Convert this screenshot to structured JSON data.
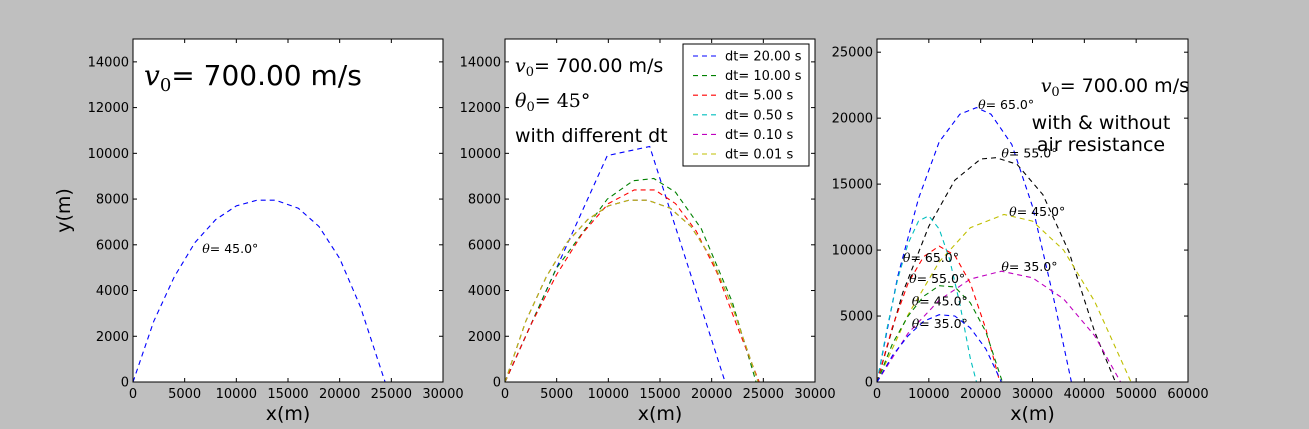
{
  "chart_data": [
    {
      "type": "line",
      "xlabel": "x(m)",
      "ylabel": "y(m)",
      "xlim": [
        0,
        30000
      ],
      "ylim": [
        0,
        15000
      ],
      "xticks": [
        "0",
        "5000",
        "10000",
        "15000",
        "20000",
        "25000",
        "30000"
      ],
      "yticks": [
        "0",
        "2000",
        "4000",
        "6000",
        "8000",
        "10000",
        "12000",
        "14000"
      ],
      "title_main": "v",
      "title_sub": "0",
      "title_rest": "= 700.00 m/s",
      "annotations": [
        {
          "text": "θ= 45.0°",
          "x": 6700,
          "y": 5650
        }
      ],
      "series": [
        {
          "name": "θ= 45.0°",
          "color": "#0000ff",
          "x": [
            0,
            2000,
            4000,
            6000,
            8000,
            10000,
            12000,
            13800,
            16000,
            18000,
            20000,
            22000,
            24400
          ],
          "y": [
            0,
            2650,
            4600,
            6100,
            7100,
            7700,
            7950,
            7950,
            7600,
            6800,
            5400,
            3300,
            0
          ]
        }
      ]
    },
    {
      "type": "line",
      "xlabel": "x(m)",
      "xlim": [
        0,
        30000
      ],
      "ylim": [
        0,
        15000
      ],
      "xticks": [
        "0",
        "5000",
        "10000",
        "15000",
        "20000",
        "25000",
        "30000"
      ],
      "yticks": [
        "0",
        "2000",
        "4000",
        "6000",
        "8000",
        "10000",
        "12000",
        "14000"
      ],
      "title_main": "v",
      "title_sub": "0",
      "title_rest": "= 700.00 m/s",
      "theta_line": "θ",
      "theta_sub": "0",
      "theta_rest": "= 45°",
      "subtitle": "with different dt",
      "legend_position": "upper-right",
      "series": [
        {
          "name": "dt= 20.00 s",
          "color": "#0000ff",
          "x": [
            0,
            9900,
            14000,
            21300
          ],
          "y": [
            0,
            9900,
            10300,
            0
          ]
        },
        {
          "name": "dt= 10.00 s",
          "color": "#008000",
          "x": [
            0,
            4950,
            9900,
            12400,
            14400,
            16500,
            19000,
            22000,
            24300
          ],
          "y": [
            0,
            4950,
            8000,
            8800,
            8900,
            8300,
            6700,
            3500,
            0
          ]
        },
        {
          "name": "dt= 5.00 s",
          "color": "#ff0000",
          "x": [
            0,
            2500,
            5000,
            7500,
            10000,
            12500,
            14500,
            16500,
            18500,
            20500,
            22500,
            24600
          ],
          "y": [
            0,
            2500,
            4700,
            6500,
            7800,
            8400,
            8400,
            7800,
            6600,
            4800,
            2400,
            0
          ]
        },
        {
          "name": "dt= 0.50 s",
          "color": "#00bfbf",
          "x": [
            0,
            2000,
            4000,
            6000,
            8000,
            10000,
            12000,
            13800,
            16000,
            18000,
            20000,
            22000,
            24500
          ],
          "y": [
            0,
            2650,
            4600,
            6100,
            7100,
            7700,
            7950,
            7950,
            7600,
            6800,
            5400,
            3300,
            0
          ]
        },
        {
          "name": "dt= 0.10 s",
          "color": "#bf00bf",
          "x": [
            0,
            2000,
            4000,
            6000,
            8000,
            10000,
            12000,
            13800,
            16000,
            18000,
            20000,
            22000,
            24500
          ],
          "y": [
            0,
            2650,
            4600,
            6100,
            7100,
            7700,
            7950,
            7950,
            7600,
            6800,
            5400,
            3300,
            0
          ]
        },
        {
          "name": "dt= 0.01 s",
          "color": "#bfbf00",
          "x": [
            0,
            2000,
            4000,
            6000,
            8000,
            10000,
            12000,
            13800,
            16000,
            18000,
            20000,
            22000,
            24500
          ],
          "y": [
            0,
            2650,
            4600,
            6100,
            7100,
            7700,
            7950,
            7950,
            7600,
            6800,
            5400,
            3300,
            0
          ]
        }
      ]
    },
    {
      "type": "line",
      "xlabel": "x(m)",
      "xlim": [
        0,
        60000
      ],
      "ylim": [
        0,
        26000
      ],
      "xticks": [
        "0",
        "10000",
        "20000",
        "30000",
        "40000",
        "50000",
        "60000"
      ],
      "yticks": [
        "0",
        "5000",
        "10000",
        "15000",
        "20000",
        "25000"
      ],
      "title_main": "v",
      "title_sub": "0",
      "title_rest": "= 700.00 m/s",
      "subtitle_line1": "with & without",
      "subtitle_line2": "air resistance",
      "annotations": [
        {
          "text": "θ= 65.0°",
          "x": 19500,
          "y": 20700
        },
        {
          "text": "θ= 55.0°",
          "x": 24000,
          "y": 17000
        },
        {
          "text": "θ= 45.0°",
          "x": 25500,
          "y": 12600
        },
        {
          "text": "θ= 35.0°",
          "x": 24000,
          "y": 8400
        },
        {
          "text": "θ= 65.0°",
          "x": 5000,
          "y": 9100
        },
        {
          "text": "θ= 55.0°",
          "x": 6200,
          "y": 7500
        },
        {
          "text": "θ= 45.0°",
          "x": 6700,
          "y": 5800
        },
        {
          "text": "θ= 35.0°",
          "x": 6700,
          "y": 4100
        }
      ],
      "series": [
        {
          "name": "θ= 65.0° (no drag)",
          "color": "#0000ff",
          "x": [
            0,
            4000,
            8000,
            12000,
            16000,
            19200,
            22000,
            26000,
            30000,
            34000,
            37500
          ],
          "y": [
            0,
            8000,
            13900,
            18200,
            20300,
            20800,
            20300,
            18000,
            13300,
            6500,
            0
          ]
        },
        {
          "name": "θ= 55.0° (no drag)",
          "color": "#000000",
          "x": [
            0,
            5000,
            10000,
            15000,
            20000,
            23000,
            27000,
            32000,
            37000,
            42000,
            46000
          ],
          "y": [
            0,
            6800,
            11800,
            15300,
            16900,
            17000,
            16500,
            14200,
            9900,
            3800,
            0
          ]
        },
        {
          "name": "θ= 45.0° (no drag)",
          "color": "#bfbf00",
          "x": [
            0,
            6000,
            12000,
            18000,
            24500,
            30000,
            36000,
            42000,
            49000
          ],
          "y": [
            0,
            5100,
            9100,
            11700,
            12700,
            12200,
            10000,
            6100,
            0
          ]
        },
        {
          "name": "θ= 35.0° (no drag)",
          "color": "#bf00bf",
          "x": [
            0,
            6000,
            12000,
            18000,
            24000,
            30000,
            36000,
            42000,
            47000
          ],
          "y": [
            0,
            3700,
            6200,
            7800,
            8400,
            7900,
            6300,
            3500,
            0
          ]
        },
        {
          "name": "θ= 65.0° (drag)",
          "color": "#00bfbf",
          "x": [
            0,
            2000,
            4000,
            6000,
            8000,
            10000,
            12000,
            14000,
            16000,
            18000,
            19200
          ],
          "y": [
            0,
            4200,
            7800,
            10500,
            12200,
            12600,
            11600,
            9300,
            5900,
            1800,
            0
          ]
        },
        {
          "name": "θ= 55.0° (drag)",
          "color": "#ff0000",
          "x": [
            0,
            3000,
            6000,
            9000,
            12000,
            15000,
            18000,
            21000,
            23700
          ],
          "y": [
            0,
            4200,
            7500,
            9500,
            10300,
            9600,
            7500,
            4000,
            0
          ]
        },
        {
          "name": "θ= 45.0° (drag)",
          "color": "#008000",
          "x": [
            0,
            3000,
            6000,
            9000,
            12000,
            15000,
            18000,
            21000,
            24200
          ],
          "y": [
            0,
            2900,
            5000,
            6500,
            7300,
            7200,
            6000,
            3800,
            0
          ]
        },
        {
          "name": "θ= 35.0° (drag)",
          "color": "#0000ff",
          "x": [
            0,
            3000,
            6000,
            9000,
            12000,
            15000,
            18000,
            21000,
            24000
          ],
          "y": [
            0,
            2000,
            3500,
            4600,
            5100,
            5000,
            4100,
            2500,
            0
          ]
        }
      ]
    }
  ]
}
